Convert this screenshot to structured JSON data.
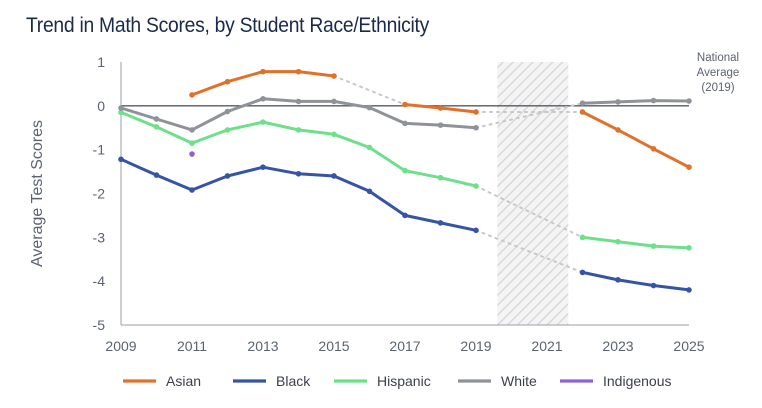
{
  "title": "Trend in Math Scores, by Student Race/Ethnicity",
  "chart_data": {
    "type": "line",
    "title": "Trend in Math Scores, by Student Race/Ethnicity",
    "xlabel": "",
    "ylabel": "Average Test Scores",
    "xlim": [
      2009,
      2025
    ],
    "ylim": [
      -5,
      1
    ],
    "x_ticks": [
      2009,
      2011,
      2013,
      2015,
      2017,
      2019,
      2021,
      2023,
      2025
    ],
    "y_ticks": [
      1,
      0,
      -1,
      -2,
      -3,
      -4,
      -5
    ],
    "reference_line": {
      "y": 0,
      "label_lines": [
        "National",
        "Average",
        "(2019)"
      ]
    },
    "shaded_region": {
      "x_start": 2019.6,
      "x_end": 2021.6
    },
    "grid": false,
    "legend_position": "bottom",
    "series": [
      {
        "name": "Asian",
        "color": "#e0712b",
        "x": [
          2011,
          2012,
          2013,
          2014,
          2015,
          2017,
          2018,
          2019,
          2022,
          2023,
          2024,
          2025
        ],
        "values": [
          0.25,
          0.55,
          0.78,
          0.78,
          0.68,
          0.03,
          -0.05,
          -0.14,
          -0.14,
          -0.55,
          -0.98,
          -1.4
        ],
        "segments": [
          [
            0,
            4
          ],
          [
            5,
            7
          ],
          [
            8,
            11
          ]
        ],
        "dashed_gaps": [
          [
            4,
            5
          ],
          [
            7,
            8
          ]
        ]
      },
      {
        "name": "Black",
        "color": "#3554a5",
        "x": [
          2009,
          2010,
          2011,
          2012,
          2013,
          2014,
          2015,
          2016,
          2017,
          2018,
          2019,
          2022,
          2023,
          2024,
          2025
        ],
        "values": [
          -1.22,
          -1.58,
          -1.92,
          -1.6,
          -1.4,
          -1.55,
          -1.6,
          -1.95,
          -2.5,
          -2.67,
          -2.84,
          -3.8,
          -3.97,
          -4.1,
          -4.2
        ],
        "segments": [
          [
            0,
            10
          ],
          [
            11,
            14
          ]
        ],
        "dashed_gaps": [
          [
            10,
            11
          ]
        ]
      },
      {
        "name": "Hispanic",
        "color": "#6ee08a",
        "x": [
          2009,
          2010,
          2011,
          2012,
          2013,
          2014,
          2015,
          2016,
          2017,
          2018,
          2019,
          2022,
          2023,
          2024,
          2025
        ],
        "values": [
          -0.15,
          -0.48,
          -0.85,
          -0.55,
          -0.37,
          -0.55,
          -0.65,
          -0.95,
          -1.48,
          -1.64,
          -1.83,
          -3.0,
          -3.1,
          -3.2,
          -3.24
        ],
        "segments": [
          [
            0,
            10
          ],
          [
            11,
            14
          ]
        ],
        "dashed_gaps": [
          [
            10,
            11
          ]
        ]
      },
      {
        "name": "White",
        "color": "#8f9299",
        "x": [
          2009,
          2010,
          2011,
          2012,
          2013,
          2014,
          2015,
          2016,
          2017,
          2018,
          2019,
          2022,
          2023,
          2024,
          2025
        ],
        "values": [
          -0.05,
          -0.3,
          -0.55,
          -0.13,
          0.16,
          0.1,
          0.1,
          -0.04,
          -0.4,
          -0.44,
          -0.5,
          0.06,
          0.09,
          0.12,
          0.11
        ],
        "segments": [
          [
            0,
            10
          ],
          [
            11,
            14
          ]
        ],
        "dashed_gaps": [
          [
            10,
            11
          ]
        ]
      },
      {
        "name": "Indigenous",
        "color": "#8c63d6",
        "x": [
          2011
        ],
        "values": [
          -1.1
        ],
        "segments": [
          [
            0,
            0
          ]
        ],
        "dashed_gaps": []
      }
    ]
  }
}
